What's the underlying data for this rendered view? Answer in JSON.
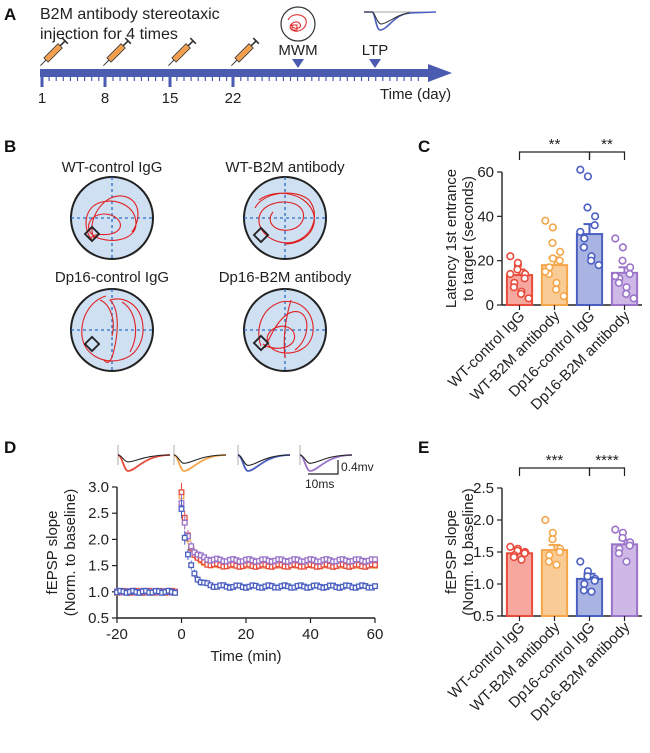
{
  "panels": {
    "A": {
      "label": "A",
      "title_line1": "B2M antibody stereotaxic",
      "title_line2": "injection for 4 times",
      "injection_days": [
        "1",
        "8",
        "15",
        "22"
      ],
      "mwm_label": "MWM",
      "ltp_label": "LTP",
      "time_label": "Time (day)"
    },
    "B": {
      "label": "B",
      "groups": [
        "WT-control IgG",
        "WT-B2M antibody",
        "Dp16-control IgG",
        "Dp16-B2M antibody"
      ]
    },
    "C": {
      "label": "C"
    },
    "D": {
      "label": "D",
      "scale_y": "0.4mv",
      "scale_x": "10ms"
    },
    "E": {
      "label": "E"
    }
  },
  "colors": {
    "wt_igg": "#e84a3c",
    "wt_b2m": "#f5a64a",
    "dp16_igg": "#4a5fc1",
    "dp16_b2m": "#9b74c9",
    "timeline": "#4a5bb0",
    "pool_fill": "#cfe0f3",
    "swim_path": "#e02020"
  },
  "chart_data": [
    {
      "panel": "C",
      "type": "bar",
      "categories": [
        "WT-control IgG",
        "WT-B2M antibody",
        "Dp16-control IgG",
        "Dp16-B2M antibody"
      ],
      "values": [
        13.5,
        18,
        32,
        14.5
      ],
      "errors": [
        2.5,
        3.5,
        4.5,
        2.5
      ],
      "points": [
        [
          22,
          18,
          16,
          14,
          12,
          10,
          8,
          6,
          5,
          3,
          14,
          19
        ],
        [
          38,
          35,
          28,
          24,
          20,
          17,
          14,
          10,
          7,
          4,
          15,
          21
        ],
        [
          61,
          58,
          44,
          40,
          36,
          30,
          26,
          22,
          20,
          18,
          33
        ],
        [
          30,
          26,
          20,
          17,
          14,
          12,
          10,
          8,
          5,
          3,
          13
        ]
      ],
      "ylabel": "Latency 1st entrance\nto target (seconds)",
      "ylim": [
        0,
        60
      ],
      "yticks": [
        "0",
        "20",
        "40",
        "60"
      ],
      "significance": [
        {
          "from": 0,
          "to": 2,
          "label": "**"
        },
        {
          "from": 2,
          "to": 3,
          "label": "**"
        }
      ]
    },
    {
      "panel": "D",
      "type": "scatter",
      "xlabel": "Time (min)",
      "ylabel": "fEPSP slope\n(Norm. to baseline)",
      "xlim": [
        -20,
        60
      ],
      "ylim": [
        0.5,
        3.0
      ],
      "xticks": [
        "-20",
        "0",
        "20",
        "40",
        "60"
      ],
      "yticks": [
        "0.5",
        "1.0",
        "1.5",
        "2.0",
        "2.5",
        "3.0"
      ],
      "series": [
        {
          "name": "WT-control IgG",
          "baseline": 1.0,
          "peak": 2.9,
          "plateau": 1.5
        },
        {
          "name": "WT-B2M antibody",
          "baseline": 1.0,
          "peak": 2.8,
          "plateau": 1.52
        },
        {
          "name": "Dp16-control IgG",
          "baseline": 1.0,
          "peak": 2.6,
          "plateau": 1.1
        },
        {
          "name": "Dp16-B2M antibody",
          "baseline": 1.0,
          "peak": 2.7,
          "plateau": 1.6
        }
      ]
    },
    {
      "panel": "E",
      "type": "bar",
      "categories": [
        "WT-control IgG",
        "WT-B2M antibody",
        "Dp16-control IgG",
        "Dp16-B2M antibody"
      ],
      "values": [
        1.48,
        1.53,
        1.08,
        1.62
      ],
      "errors": [
        0.05,
        0.08,
        0.08,
        0.07
      ],
      "points": [
        [
          1.58,
          1.55,
          1.52,
          1.5,
          1.48,
          1.45,
          1.42,
          1.38
        ],
        [
          2.0,
          1.8,
          1.7,
          1.55,
          1.5,
          1.45,
          1.35,
          1.3
        ],
        [
          1.35,
          1.2,
          1.12,
          1.08,
          1.05,
          1.0,
          0.9,
          0.88
        ],
        [
          1.85,
          1.8,
          1.72,
          1.65,
          1.6,
          1.55,
          1.48,
          1.35
        ]
      ],
      "ylabel": "fEPSP slope\n(Norm. to baseline)",
      "ylim": [
        0.5,
        2.5
      ],
      "yticks": [
        "0.5",
        "1.0",
        "1.5",
        "2.0",
        "2.5"
      ],
      "significance": [
        {
          "from": 0,
          "to": 2,
          "label": "***"
        },
        {
          "from": 2,
          "to": 3,
          "label": "****"
        }
      ]
    }
  ]
}
